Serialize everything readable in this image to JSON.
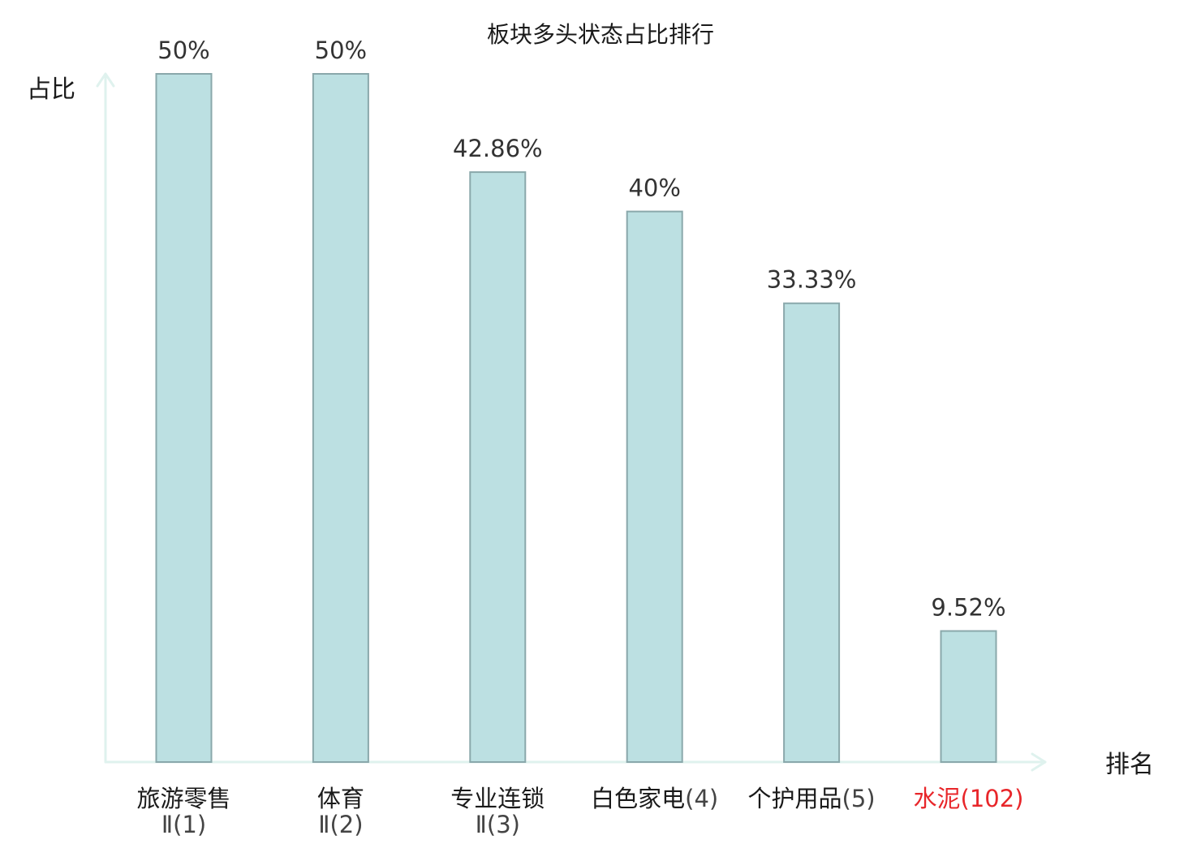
{
  "chart_data": {
    "type": "bar",
    "title": "板块多头状态占比排行",
    "ylabel": "占比",
    "xlabel": "排名",
    "ylim": [
      0,
      50
    ],
    "grid": false,
    "categories": [
      {
        "name": "旅游零售",
        "rank": "Ⅱ(1)",
        "highlight": false
      },
      {
        "name": "体育",
        "rank": "Ⅱ(2)",
        "highlight": false
      },
      {
        "name": "专业连锁",
        "rank": "Ⅱ(3)",
        "highlight": false
      },
      {
        "name": "白色家电",
        "rank": "(4)",
        "highlight": false
      },
      {
        "name": "个护用品",
        "rank": "(5)",
        "highlight": false
      },
      {
        "name": "水泥",
        "rank": "(102)",
        "highlight": true
      }
    ],
    "values": [
      50,
      50,
      42.86,
      40,
      33.33,
      9.52
    ],
    "value_labels": [
      "50%",
      "50%",
      "42.86%",
      "40%",
      "33.33%",
      "9.52%"
    ]
  },
  "colors": {
    "bar_fill": "#bce0e2",
    "bar_stroke": "#8aa8ab",
    "axis": "#dff2ee",
    "highlight": "#e8262a"
  }
}
